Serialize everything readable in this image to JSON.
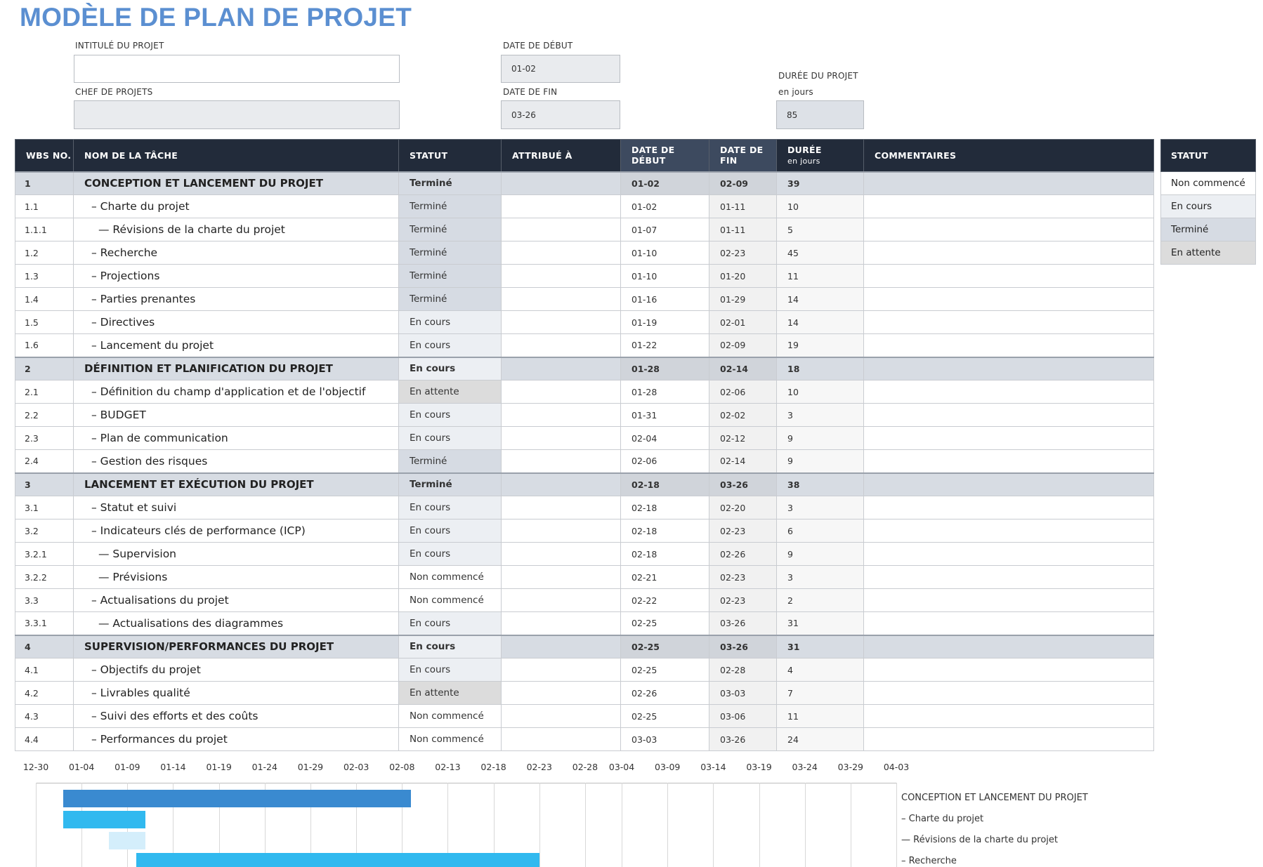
{
  "header": {
    "title": "MODÈLE DE PLAN DE PROJET"
  },
  "fields": {
    "intitule_label": "INTITULÉ DU PROJET",
    "intitule_value": "",
    "chef_label": "CHEF DE PROJETS",
    "chef_value": "",
    "date_debut_label": "DATE DE DÉBUT",
    "date_debut_value": "01-02",
    "date_fin_label": "DATE DE FIN",
    "date_fin_value": "03-26",
    "duree_label": "DURÉE DU PROJET",
    "duree_sub": "en jours",
    "duree_value": "85"
  },
  "table": {
    "headers": {
      "wbs": "WBS NO.",
      "task": "NOM DE LA TÂCHE",
      "status": "STATUT",
      "assigned": "ATTRIBUÉ À",
      "start": "DATE DE DÉBUT",
      "end": "DATE DE FIN",
      "duration": "DURÉE",
      "duration_sub": "en jours",
      "comments": "COMMENTAIRES"
    },
    "rows": [
      {
        "wbs": "1",
        "task": "CONCEPTION ET LANCEMENT DU PROJET",
        "status": "Terminé",
        "assigned": "",
        "start": "01-02",
        "end": "02-09",
        "duration": "39",
        "comments": "",
        "group": true
      },
      {
        "wbs": "1.1",
        "task": "– Charte du projet",
        "status": "Terminé",
        "assigned": "",
        "start": "01-02",
        "end": "01-11",
        "duration": "10",
        "comments": "",
        "level": 1
      },
      {
        "wbs": "1.1.1",
        "task": "— Révisions de la charte du projet",
        "status": "Terminé",
        "assigned": "",
        "start": "01-07",
        "end": "01-11",
        "duration": "5",
        "comments": "",
        "level": 2
      },
      {
        "wbs": "1.2",
        "task": "– Recherche",
        "status": "Terminé",
        "assigned": "",
        "start": "01-10",
        "end": "02-23",
        "duration": "45",
        "comments": "",
        "level": 1
      },
      {
        "wbs": "1.3",
        "task": "– Projections",
        "status": "Terminé",
        "assigned": "",
        "start": "01-10",
        "end": "01-20",
        "duration": "11",
        "comments": "",
        "level": 1
      },
      {
        "wbs": "1.4",
        "task": "– Parties prenantes",
        "status": "Terminé",
        "assigned": "",
        "start": "01-16",
        "end": "01-29",
        "duration": "14",
        "comments": "",
        "level": 1
      },
      {
        "wbs": "1.5",
        "task": "– Directives",
        "status": "En cours",
        "assigned": "",
        "start": "01-19",
        "end": "02-01",
        "duration": "14",
        "comments": "",
        "level": 1
      },
      {
        "wbs": "1.6",
        "task": "– Lancement du projet",
        "status": "En cours",
        "assigned": "",
        "start": "01-22",
        "end": "02-09",
        "duration": "19",
        "comments": "",
        "level": 1
      },
      {
        "wbs": "2",
        "task": "DÉFINITION ET PLANIFICATION DU PROJET",
        "status": "En cours",
        "assigned": "",
        "start": "01-28",
        "end": "02-14",
        "duration": "18",
        "comments": "",
        "group": true
      },
      {
        "wbs": "2.1",
        "task": "– Définition du champ d'application et de l'objectif",
        "status": "En attente",
        "assigned": "",
        "start": "01-28",
        "end": "02-06",
        "duration": "10",
        "comments": "",
        "level": 1
      },
      {
        "wbs": "2.2",
        "task": "– BUDGET",
        "status": "En cours",
        "assigned": "",
        "start": "01-31",
        "end": "02-02",
        "duration": "3",
        "comments": "",
        "level": 1
      },
      {
        "wbs": "2.3",
        "task": "– Plan de communication",
        "status": "En cours",
        "assigned": "",
        "start": "02-04",
        "end": "02-12",
        "duration": "9",
        "comments": "",
        "level": 1
      },
      {
        "wbs": "2.4",
        "task": "– Gestion des risques",
        "status": "Terminé",
        "assigned": "",
        "start": "02-06",
        "end": "02-14",
        "duration": "9",
        "comments": "",
        "level": 1
      },
      {
        "wbs": "3",
        "task": "LANCEMENT ET EXÉCUTION DU PROJET",
        "status": "Terminé",
        "assigned": "",
        "start": "02-18",
        "end": "03-26",
        "duration": "38",
        "comments": "",
        "group": true
      },
      {
        "wbs": "3.1",
        "task": "– Statut et suivi",
        "status": "En cours",
        "assigned": "",
        "start": "02-18",
        "end": "02-20",
        "duration": "3",
        "comments": "",
        "level": 1
      },
      {
        "wbs": "3.2",
        "task": "– Indicateurs clés de performance (ICP)",
        "status": "En cours",
        "assigned": "",
        "start": "02-18",
        "end": "02-23",
        "duration": "6",
        "comments": "",
        "level": 1
      },
      {
        "wbs": "3.2.1",
        "task": "— Supervision",
        "status": "En cours",
        "assigned": "",
        "start": "02-18",
        "end": "02-26",
        "duration": "9",
        "comments": "",
        "level": 2
      },
      {
        "wbs": "3.2.2",
        "task": "— Prévisions",
        "status": "Non commencé",
        "assigned": "",
        "start": "02-21",
        "end": "02-23",
        "duration": "3",
        "comments": "",
        "level": 2
      },
      {
        "wbs": "3.3",
        "task": "– Actualisations du projet",
        "status": "Non commencé",
        "assigned": "",
        "start": "02-22",
        "end": "02-23",
        "duration": "2",
        "comments": "",
        "level": 1
      },
      {
        "wbs": "3.3.1",
        "task": "— Actualisations des diagrammes",
        "status": "En cours",
        "assigned": "",
        "start": "02-25",
        "end": "03-26",
        "duration": "31",
        "comments": "",
        "level": 2
      },
      {
        "wbs": "4",
        "task": "SUPERVISION/PERFORMANCES DU PROJET",
        "status": "En cours",
        "assigned": "",
        "start": "02-25",
        "end": "03-26",
        "duration": "31",
        "comments": "",
        "group": true
      },
      {
        "wbs": "4.1",
        "task": "– Objectifs du projet",
        "status": "En cours",
        "assigned": "",
        "start": "02-25",
        "end": "02-28",
        "duration": "4",
        "comments": "",
        "level": 1
      },
      {
        "wbs": "4.2",
        "task": "– Livrables qualité",
        "status": "En attente",
        "assigned": "",
        "start": "02-26",
        "end": "03-03",
        "duration": "7",
        "comments": "",
        "level": 1
      },
      {
        "wbs": "4.3",
        "task": "– Suivi des efforts et des coûts",
        "status": "Non commencé",
        "assigned": "",
        "start": "02-25",
        "end": "03-06",
        "duration": "11",
        "comments": "",
        "level": 1
      },
      {
        "wbs": "4.4",
        "task": "– Performances du projet",
        "status": "Non commencé",
        "assigned": "",
        "start": "03-03",
        "end": "03-26",
        "duration": "24",
        "comments": "",
        "level": 1
      }
    ]
  },
  "legend": {
    "header": "STATUT",
    "items": [
      {
        "label": "Non commencé",
        "color": "#ffffff"
      },
      {
        "label": "En cours",
        "color": "#eceff3"
      },
      {
        "label": "Terminé",
        "color": "#d6dbe3"
      },
      {
        "label": "En attente",
        "color": "#dcdcdc"
      }
    ]
  },
  "chart_data": {
    "type": "bar",
    "orientation": "horizontal",
    "x_ticks": [
      "12-30",
      "01-04",
      "01-09",
      "01-14",
      "01-19",
      "01-24",
      "01-29",
      "02-03",
      "02-08",
      "02-13",
      "02-18",
      "02-23",
      "02-28",
      "03-04",
      "03-09",
      "03-14",
      "03-19",
      "03-24",
      "03-29",
      "04-03"
    ],
    "xlim": [
      "12-30",
      "04-03"
    ],
    "tasks": [
      {
        "label": "CONCEPTION ET LANCEMENT DU PROJET",
        "start": "01-02",
        "end": "02-09",
        "color": "#3a8ad0"
      },
      {
        "label": "– Charte du projet",
        "start": "01-02",
        "end": "01-11",
        "color": "#31b9ef"
      },
      {
        "label": "— Révisions de la charte du projet",
        "start": "01-07",
        "end": "01-11",
        "color": "#d4eefb"
      },
      {
        "label": "– Recherche",
        "start": "01-10",
        "end": "02-23",
        "color": "#31b9ef"
      }
    ]
  }
}
